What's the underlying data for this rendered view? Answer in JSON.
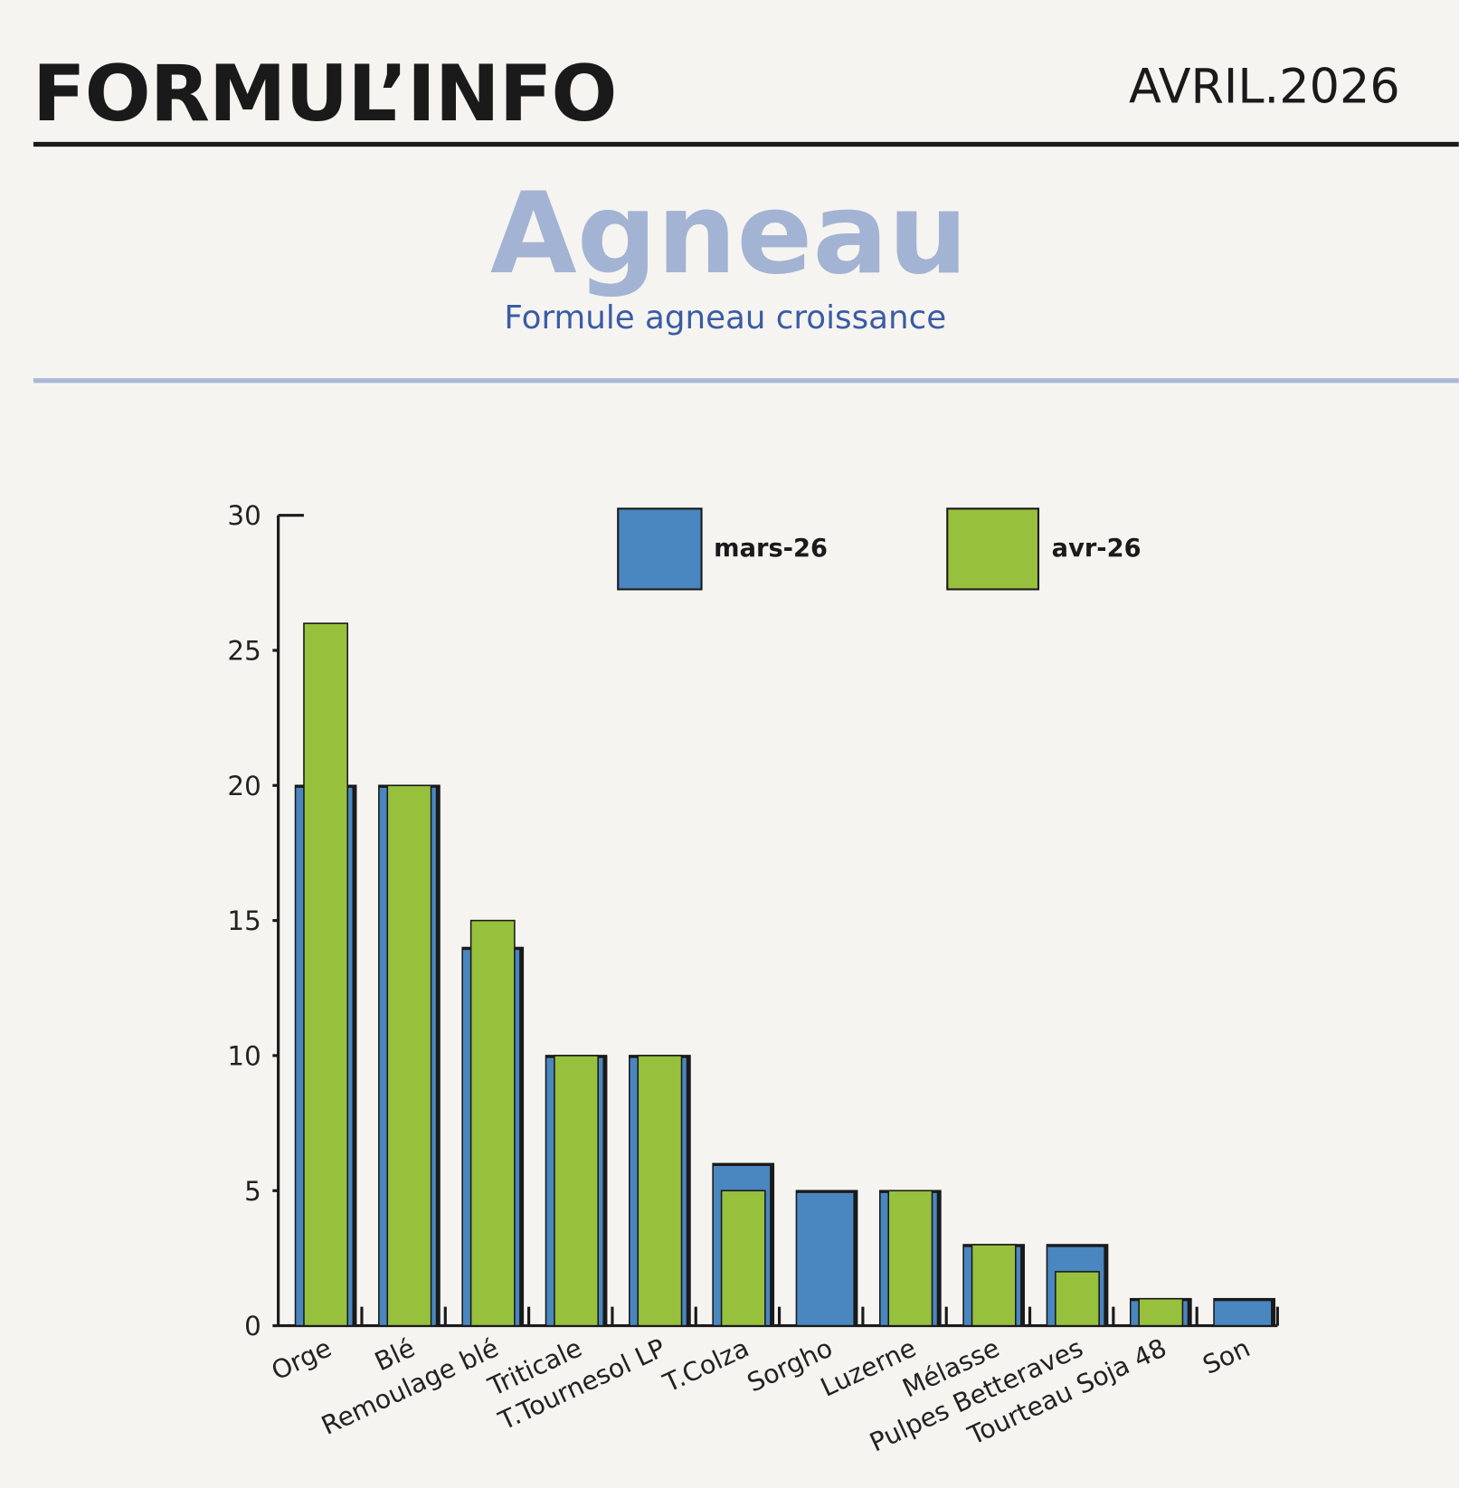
{
  "header": {
    "brand": "FORMUL’INFO",
    "date": "AVRIL.2026"
  },
  "chart_data": {
    "type": "bar",
    "title": "Agneau",
    "subtitle": "Formule agneau croissance",
    "categories": [
      "Orge",
      "Blé",
      "Remoulage blé",
      "Triticale",
      "T.Tournesol LP",
      "T.Colza",
      "Sorgho",
      "Luzerne",
      "Mélasse",
      "Pulpes Betteraves",
      "Tourteau Soja 48",
      "Son"
    ],
    "series": [
      {
        "name": "mars-26",
        "color": "#4a86c0",
        "values": [
          20,
          20,
          14,
          10,
          10,
          6,
          5,
          5,
          3,
          3,
          1,
          1
        ]
      },
      {
        "name": "avr-26",
        "color": "#97c13d",
        "values": [
          26,
          20,
          15,
          10,
          10,
          5,
          0,
          5,
          3,
          2,
          1,
          0
        ]
      }
    ],
    "ylim": [
      0,
      30
    ],
    "yticks": [
      0,
      5,
      10,
      15,
      20,
      25,
      30
    ],
    "grid": false
  }
}
